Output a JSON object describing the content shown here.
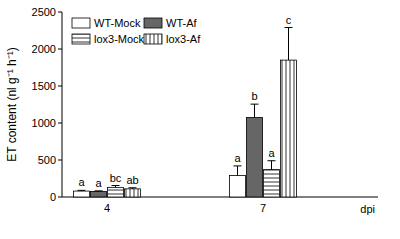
{
  "chart_data": {
    "type": "bar",
    "y_label": "ET content (nl g⁻¹ h⁻¹)",
    "x_label": "dpi",
    "categories": [
      "4",
      "7"
    ],
    "series": [
      {
        "name": "WT-Mock",
        "color": "#ffffff",
        "values": [
          80,
          290
        ],
        "errors": [
          10,
          130
        ],
        "annotations": [
          "a",
          "a"
        ]
      },
      {
        "name": "WT-Af",
        "color": "#666666",
        "values": [
          75,
          1075
        ],
        "errors": [
          8,
          180
        ],
        "annotations": [
          "a",
          "b"
        ]
      },
      {
        "name": "lox3-Mock",
        "color": "#ffffff",
        "values": [
          130,
          370
        ],
        "errors": [
          25,
          120
        ],
        "annotations": [
          "bc",
          "a"
        ]
      },
      {
        "name": "lox3-Af",
        "color": "#ffffff",
        "values": [
          110,
          1850
        ],
        "errors": [
          15,
          440
        ],
        "annotations": [
          "ab",
          "c"
        ]
      }
    ],
    "ylim": [
      0,
      2500
    ],
    "yticks": [
      0,
      500,
      1000,
      1500,
      2000,
      2500
    ],
    "legend": "top-left",
    "grid": false
  }
}
